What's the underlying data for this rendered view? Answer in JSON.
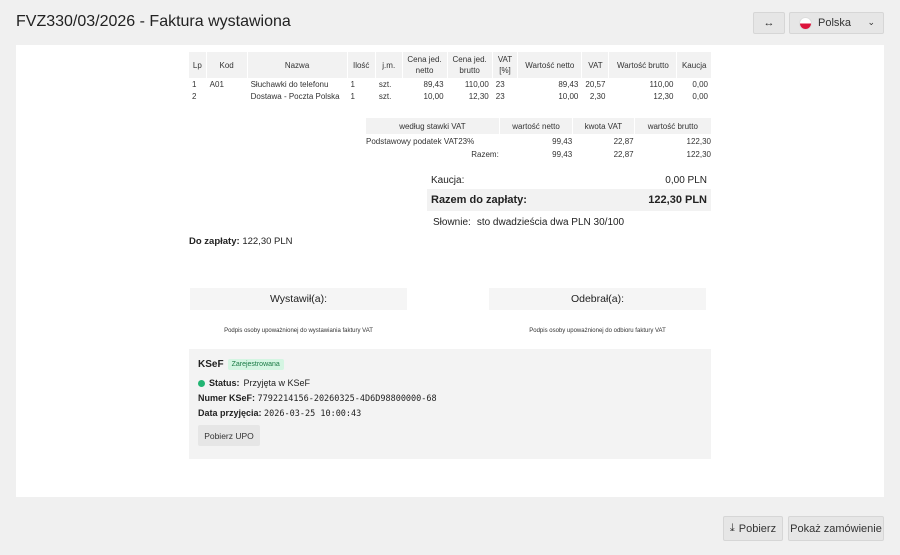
{
  "header": {
    "title": "FVZ330/03/2026 - Faktura wystawiona",
    "expand_icon": "↔",
    "country": "Polska",
    "flag_colors": [
      "#ffffff",
      "#dc143c"
    ]
  },
  "items": {
    "columns": [
      "Lp",
      "Kod",
      "Nazwa",
      "Ilość",
      "j.m.",
      "Cena jed. netto",
      "Cena jed. brutto",
      "VAT [%]",
      "Wartość netto",
      "VAT",
      "Wartość brutto",
      "Kaucja"
    ],
    "rows": [
      [
        "1",
        "A01",
        "Słuchawki do telefonu",
        "1",
        "szt.",
        "89,43",
        "110,00",
        "23",
        "89,43",
        "20,57",
        "110,00",
        "0,00"
      ],
      [
        "2",
        "",
        "Dostawa - Poczta Polska",
        "1",
        "szt.",
        "10,00",
        "12,30",
        "23",
        "10,00",
        "2,30",
        "12,30",
        "0,00"
      ]
    ]
  },
  "vat_summary": {
    "columns": [
      "według stawki VAT",
      "wartość netto",
      "kwota VAT",
      "wartość brutto"
    ],
    "rows": [
      [
        "Podstawowy podatek VAT23%",
        "99,43",
        "22,87",
        "122,30"
      ],
      [
        "Razem:",
        "99,43",
        "22,87",
        "122,30"
      ]
    ]
  },
  "totals": {
    "kaucja_label": "Kaucja:",
    "kaucja_value": "0,00 PLN",
    "razem_label": "Razem do zapłaty:",
    "razem_value": "122,30 PLN",
    "slownie_label": "Słownie:",
    "slownie_value": "sto dwadzieścia dwa PLN 30/100"
  },
  "do_zaplaty": {
    "label": "Do zapłaty:",
    "value": "122,30 PLN"
  },
  "signatures": {
    "issuer": "Wystawił(a):",
    "receiver": "Odebrał(a):",
    "issuer_caption": "Podpis osoby upoważnionej do wystawiania faktury VAT",
    "receiver_caption": "Podpis osoby upoważnionej do odbioru faktury VAT"
  },
  "ksef": {
    "title": "KSeF",
    "badge": "Zarejestrowana",
    "status_label": "Status:",
    "status_value": "Przyjęta w KSeF",
    "status_color": "#22b573",
    "number_label": "Numer KSeF:",
    "number_value": "7792214156-20260325-4D6D98800000-68",
    "date_label": "Data przyjęcia:",
    "date_value": "2026-03-25 10:00:43",
    "upo_button": "Pobierz UPO"
  },
  "footer": {
    "download": "Pobierz",
    "show_order": "Pokaż zamówienie"
  }
}
